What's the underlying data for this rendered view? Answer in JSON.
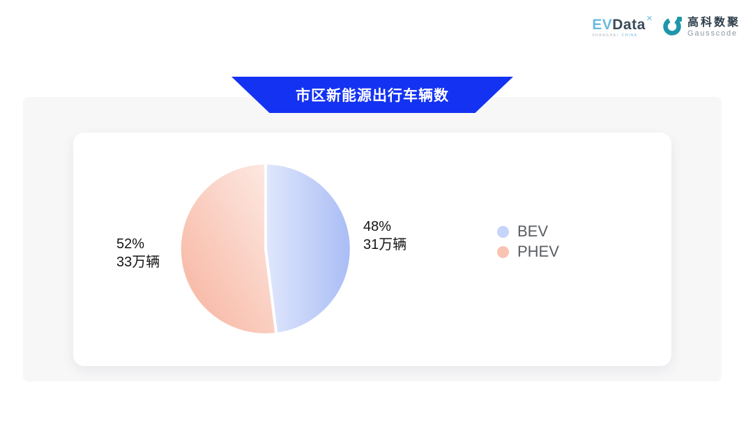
{
  "brand": {
    "evdata": {
      "ev": "EV",
      "data": "Data",
      "mark": "✕",
      "tagline_left": "SHANGHAI",
      "tagline_right": "CHINA",
      "accent_color": "#6cb9e2",
      "dark_color": "#3b4a59"
    },
    "gausscode": {
      "name_cn": "高科数聚",
      "name_en": "Gausscode",
      "icon": "g-ring-icon",
      "icon_color": "#1e96aa"
    }
  },
  "banner": {
    "title": "市区新能源出行车辆数",
    "bg_color": "#1432F2",
    "text_color": "#ffffff"
  },
  "chart_data": {
    "type": "pie",
    "title": "市区新能源出行车辆数",
    "unit": "万辆",
    "slices": [
      {
        "name": "BEV",
        "pct": 48,
        "value": 31,
        "label": "48%",
        "sublabel": "31万辆",
        "gradient": [
          "#e0e7fc",
          "#a9bdf5"
        ],
        "gradient_direction": "left-right"
      },
      {
        "name": "PHEV",
        "pct": 52,
        "value": 33,
        "label": "52%",
        "sublabel": "33万辆",
        "gradient": [
          "#fdece6",
          "#f7b19c"
        ],
        "gradient_direction": "topright-bottomleft"
      }
    ],
    "legend": [
      {
        "label": "BEV",
        "color": "#c6d4fa"
      },
      {
        "label": "PHEV",
        "color": "#f9c3b2"
      }
    ],
    "legend_position": "right",
    "slice_gap_color": "#ffffff",
    "start_angle_deg": -90,
    "clockwise": true
  }
}
